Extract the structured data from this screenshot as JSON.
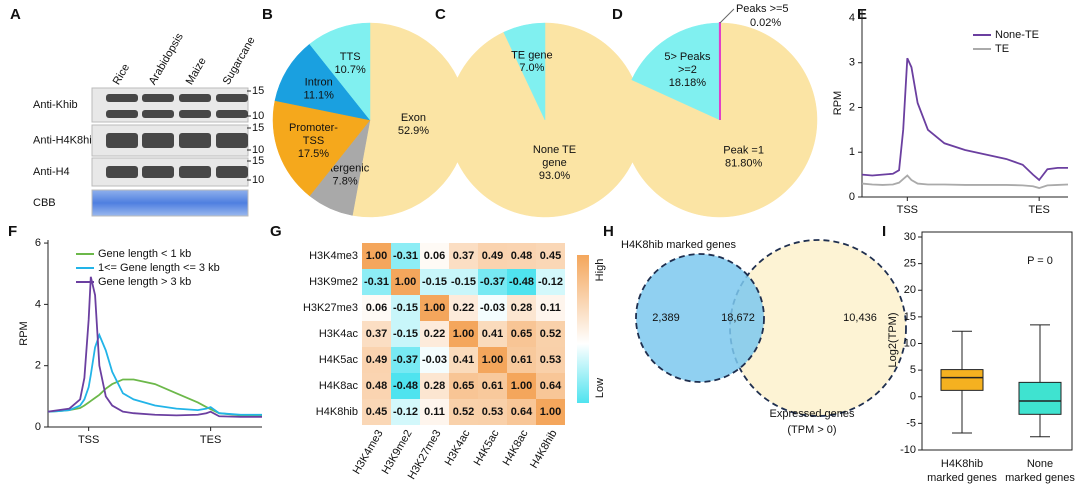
{
  "blot": {
    "panel": "A",
    "lanes": [
      "Rice",
      "Arabidopsis",
      "Maize",
      "Sugarcane"
    ],
    "rows": [
      {
        "label": "Anti-Khib",
        "markers": [
          "15",
          "10"
        ]
      },
      {
        "label": "Anti-H4K8hib",
        "markers": [
          "15",
          "10"
        ]
      },
      {
        "label": "Anti-H4",
        "markers": [
          "15",
          "10"
        ]
      },
      {
        "label": "CBB",
        "markers": []
      }
    ]
  },
  "chart_data": [
    {
      "type": "pie",
      "panel": "B",
      "labels": [
        [
          "Exon"
        ],
        [
          "Intergenic"
        ],
        [
          "Promoter-",
          "TSS"
        ],
        [
          "Intron"
        ],
        [
          "TTS"
        ]
      ],
      "values": [
        52.9,
        7.8,
        17.5,
        11.1,
        10.7
      ],
      "value_labels": [
        "52.9%",
        "7.8%",
        "17.5%",
        "11.1%",
        "10.7%"
      ],
      "colors": [
        "#fbe4a4",
        "#a9a9a9",
        "#f5a81c",
        "#1aa0e0",
        "#80f0f0"
      ]
    },
    {
      "type": "pie",
      "panel": "C",
      "labels": [
        [
          "None TE",
          "gene"
        ],
        [
          "TE gene"
        ]
      ],
      "values": [
        93.0,
        7.0
      ],
      "value_labels": [
        "93.0%",
        "7.0%"
      ],
      "colors": [
        "#fbe4a4",
        "#80f0f0"
      ]
    },
    {
      "type": "pie",
      "panel": "D",
      "labels": [
        [
          "Peak =1"
        ],
        [
          "5> Peaks",
          ">=2"
        ],
        [
          "Peaks >=5"
        ]
      ],
      "values": [
        81.8,
        18.18,
        0.02
      ],
      "value_labels": [
        "81.80%",
        "18.18%",
        "0.02%"
      ],
      "colors": [
        "#fbe4a4",
        "#80f0f0",
        "#e040c8"
      ]
    },
    {
      "type": "line",
      "panel": "E",
      "y_label": "RPM",
      "x": [
        0,
        5,
        10,
        15,
        18,
        20,
        22,
        24,
        27,
        32,
        40,
        50,
        60,
        70,
        78,
        83,
        86,
        90,
        95,
        100
      ],
      "xlim": [
        0,
        100
      ],
      "xticks": [
        {
          "value": 22,
          "label": "TSS"
        },
        {
          "value": 86,
          "label": "TES"
        }
      ],
      "ylim": [
        0,
        4.2
      ],
      "yticks": [
        0,
        1,
        2,
        3,
        4
      ],
      "legend": "upper right",
      "series": [
        {
          "name": "None-TE",
          "color": "#6b3fa0",
          "values": [
            0.5,
            0.48,
            0.5,
            0.52,
            0.6,
            1.5,
            3.1,
            2.9,
            2.1,
            1.5,
            1.2,
            1.05,
            0.95,
            0.85,
            0.72,
            0.5,
            0.38,
            0.62,
            0.65,
            0.65
          ]
        },
        {
          "name": "TE",
          "color": "#aaaaaa",
          "values": [
            0.3,
            0.28,
            0.27,
            0.28,
            0.32,
            0.4,
            0.48,
            0.38,
            0.3,
            0.28,
            0.28,
            0.27,
            0.27,
            0.27,
            0.26,
            0.24,
            0.2,
            0.26,
            0.27,
            0.28
          ]
        }
      ]
    },
    {
      "type": "line",
      "panel": "F",
      "y_label": "RPM",
      "x": [
        0,
        5,
        10,
        15,
        17,
        19,
        20,
        22,
        24,
        27,
        30,
        35,
        40,
        50,
        60,
        70,
        74,
        76,
        80,
        90,
        100
      ],
      "xlim": [
        0,
        100
      ],
      "xticks": [
        {
          "value": 19,
          "label": "TSS"
        },
        {
          "value": 76,
          "label": "TES"
        }
      ],
      "ylim": [
        0,
        6.1
      ],
      "yticks": [
        0,
        2,
        4,
        6
      ],
      "legend": "upper right",
      "series": [
        {
          "name": "Gene length < 1 kb",
          "color": "#6cb84a",
          "values": [
            0.5,
            0.52,
            0.55,
            0.62,
            0.7,
            0.8,
            0.85,
            0.95,
            1.05,
            1.25,
            1.4,
            1.55,
            1.55,
            1.4,
            1.1,
            0.8,
            0.65,
            0.58,
            0.45,
            0.38,
            0.38
          ]
        },
        {
          "name": "1<= Gene length <= 3 kb",
          "color": "#22b4e8",
          "values": [
            0.5,
            0.52,
            0.55,
            0.7,
            0.9,
            1.3,
            1.7,
            2.6,
            3.0,
            2.5,
            1.8,
            1.1,
            0.9,
            0.7,
            0.6,
            0.55,
            0.6,
            0.65,
            0.45,
            0.4,
            0.4
          ]
        },
        {
          "name": "Gene length > 3 kb",
          "color": "#6b3fa0",
          "values": [
            0.5,
            0.55,
            0.6,
            0.9,
            1.6,
            3.5,
            4.9,
            4.3,
            2.0,
            1.0,
            0.7,
            0.5,
            0.45,
            0.4,
            0.38,
            0.4,
            0.45,
            0.5,
            0.35,
            0.33,
            0.33
          ]
        }
      ]
    },
    {
      "type": "heatmap",
      "panel": "G",
      "rows": [
        "H3K4me3",
        "H3K9me2",
        "H3K27me3",
        "H3K4ac",
        "H4K5ac",
        "H4K8ac",
        "H4K8hib"
      ],
      "columns": [
        "H3K4me3",
        "H3K9me2",
        "H3K27me3",
        "H3K4ac",
        "H4K5ac",
        "H4K8ac",
        "H4K8hib"
      ],
      "values": [
        [
          1.0,
          -0.31,
          0.06,
          0.37,
          0.49,
          0.48,
          0.45
        ],
        [
          -0.31,
          1.0,
          -0.15,
          -0.15,
          -0.37,
          -0.48,
          -0.12
        ],
        [
          0.06,
          -0.15,
          1.0,
          0.22,
          -0.03,
          0.28,
          0.11
        ],
        [
          0.37,
          -0.15,
          0.22,
          1.0,
          0.41,
          0.65,
          0.52
        ],
        [
          0.49,
          -0.37,
          -0.03,
          0.41,
          1.0,
          0.61,
          0.53
        ],
        [
          0.48,
          -0.48,
          0.28,
          0.65,
          0.61,
          1.0,
          0.64
        ],
        [
          0.45,
          -0.12,
          0.11,
          0.52,
          0.53,
          0.64,
          1.0
        ]
      ],
      "value_labels": [
        [
          "1.00",
          "-0.31",
          "0.06",
          "0.37",
          "0.49",
          "0.48",
          "0.45"
        ],
        [
          "-0.31",
          "1.00",
          "-0.15",
          "-0.15",
          "-0.37",
          "-0.48",
          "-0.12"
        ],
        [
          "0.06",
          "-0.15",
          "1.00",
          "0.22",
          "-0.03",
          "0.28",
          "0.11"
        ],
        [
          "0.37",
          "-0.15",
          "0.22",
          "1.00",
          "0.41",
          "0.65",
          "0.52"
        ],
        [
          "0.49",
          "-0.37",
          "-0.03",
          "0.41",
          "1.00",
          "0.61",
          "0.53"
        ],
        [
          "0.48",
          "-0.48",
          "0.28",
          "0.65",
          "0.61",
          "1.00",
          "0.64"
        ],
        [
          "0.45",
          "-0.12",
          "0.11",
          "0.52",
          "0.53",
          "0.64",
          "1.00"
        ]
      ],
      "colorbar": {
        "high": "High",
        "low": "Low"
      },
      "colors": [
        "#4fe3ef",
        "#ffffff",
        "#f4a65c"
      ]
    },
    {
      "type": "venn",
      "panel": "H",
      "sets": [
        {
          "name": [
            "H4K8hib marked genes"
          ],
          "color": "#7cc8ee"
        },
        {
          "name": [
            "Expressed genes",
            "(TPM > 0)"
          ],
          "color": "#fdf3d4"
        }
      ],
      "values": [
        2389,
        18672,
        10436
      ],
      "value_labels": [
        "2,389",
        "18,672",
        "10,436"
      ]
    },
    {
      "type": "box",
      "panel": "I",
      "y_label": "Log2(TPM)",
      "categories": [
        [
          "H4K8hib",
          "marked genes"
        ],
        [
          "None",
          "marked genes"
        ]
      ],
      "ylim": [
        -10,
        30
      ],
      "yticks": [
        -10,
        -5,
        0,
        5,
        10,
        15,
        20,
        25,
        30
      ],
      "boxes": [
        {
          "min": -6.8,
          "q1": 1.2,
          "median": 3.6,
          "q3": 5.1,
          "max": 12.3,
          "color": "#f5b120"
        },
        {
          "min": -7.5,
          "q1": -3.3,
          "median": -0.8,
          "q3": 2.7,
          "max": 13.5,
          "color": "#3fe3d0"
        }
      ],
      "annotation": "P = 0"
    }
  ]
}
